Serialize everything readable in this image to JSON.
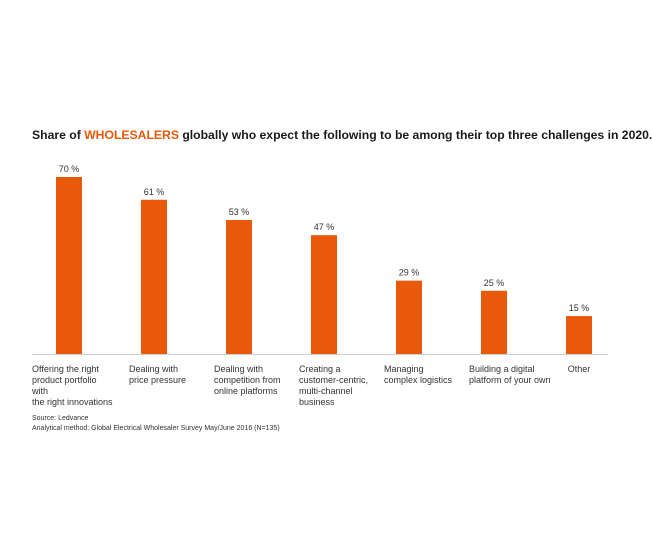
{
  "title": {
    "prefix": "Share of ",
    "highlight": "WHOLESALERS",
    "suffix": " globally who expect the following to be among their top three challenges in 2020."
  },
  "chart_data": {
    "type": "bar",
    "categories": [
      "Offering the right product portfolio with the right innovations",
      "Dealing with price pressure",
      "Dealing with competition from online platforms",
      "Creating a customer-centric, multi-channel business",
      "Managing complex logistics",
      "Building a digital platform of your own",
      "Other"
    ],
    "category_lines": [
      [
        "Offering the right",
        "product portfolio with",
        "the right innovations"
      ],
      [
        "Dealing with",
        "price pressure"
      ],
      [
        "Dealing with",
        "competition from",
        "online platforms"
      ],
      [
        "Creating a",
        "customer-centric,",
        "multi-channel",
        "business"
      ],
      [
        "Managing",
        "complex logistics"
      ],
      [
        "Building a digital",
        "platform of your own"
      ],
      [
        "Other"
      ]
    ],
    "values": [
      70,
      61,
      53,
      47,
      29,
      25,
      15
    ],
    "value_labels": [
      "70 %",
      "61 %",
      "53 %",
      "47 %",
      "29 %",
      "25 %",
      "15 %"
    ],
    "unit": "%",
    "ylim": [
      0,
      70
    ],
    "bar_color": "#e8590c",
    "grid": false,
    "legend": "none"
  },
  "source": {
    "line1": "Source: Ledvance",
    "line2": "Analytical method: Global Electrical Wholesaler Survey May/June 2016 (N=135)"
  }
}
